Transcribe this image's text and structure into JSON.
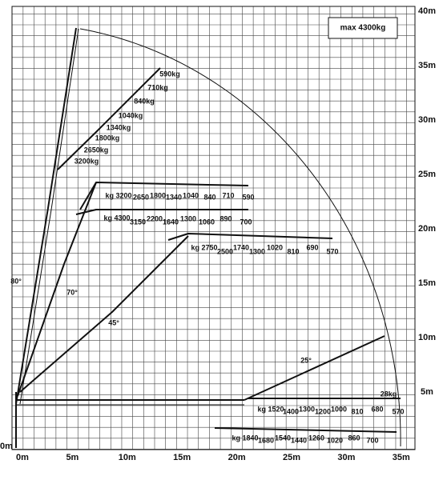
{
  "title": "max 4300kg",
  "axes": {
    "x_labels": [
      "0m",
      "5m",
      "10m",
      "15m",
      "20m",
      "25m",
      "30m",
      "35m"
    ],
    "y_labels": [
      "0m",
      "5m",
      "10m",
      "15m",
      "20m",
      "25m",
      "30m",
      "35m",
      "40m"
    ]
  },
  "angles": [
    "80°",
    "70°",
    "45°",
    "25°"
  ],
  "load_rows": [
    {
      "labels": [
        "590kg",
        "710kg",
        "840kg",
        "1040kg",
        "1340kg",
        "1800kg",
        "2650kg",
        "3200kg"
      ]
    },
    {
      "labels": [
        "kg 3200",
        "2650",
        "1800",
        "1340",
        "1040",
        "840",
        "710",
        "590"
      ]
    },
    {
      "labels": [
        "kg 4300",
        "3150",
        "2200",
        "1640",
        "1300",
        "1060",
        "890",
        "700"
      ]
    },
    {
      "labels": [
        "kg 2750",
        "2500",
        "1740",
        "1300",
        "1020",
        "810",
        "690",
        "570"
      ]
    },
    {
      "labels": [
        "28kg",
        "kg 1520",
        "1400",
        "1300",
        "1200",
        "1000",
        "810",
        "680",
        "570"
      ]
    },
    {
      "labels": [
        "kg 1840",
        "1680",
        "1540",
        "1440",
        "1260",
        "1020",
        "860",
        "700"
      ]
    }
  ]
}
